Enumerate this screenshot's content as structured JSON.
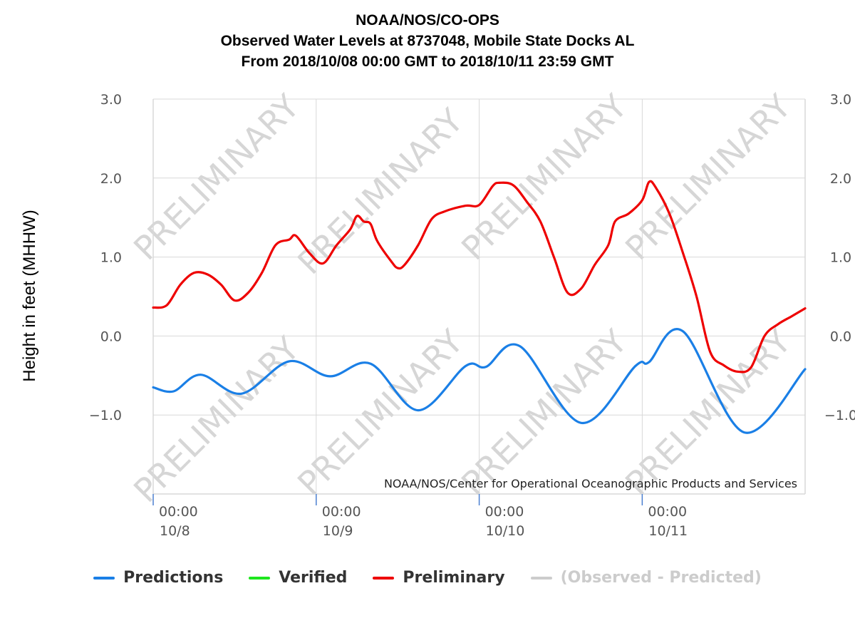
{
  "title": {
    "line1": "NOAA/NOS/CO-OPS",
    "line2": "Observed Water Levels at 8737048, Mobile State Docks AL",
    "line3": "From 2018/10/08 00:00 GMT to 2018/10/11 23:59 GMT"
  },
  "ylabel": "Height in feet (MHHW)",
  "credit": "NOAA/NOS/Center for Operational Oceanographic Products and Services",
  "watermark": "PRELIMINARY",
  "colors": {
    "predictions": "#1a7fe6",
    "verified": "#1ee61e",
    "preliminary": "#ee0000",
    "observed_minus_predicted": "#cccccc",
    "grid": "#d8d8d8"
  },
  "legend": [
    {
      "key": "predictions",
      "label": "Predictions",
      "color": "#1a7fe6",
      "muted": false
    },
    {
      "key": "verified",
      "label": "Verified",
      "color": "#1ee61e",
      "muted": false
    },
    {
      "key": "preliminary",
      "label": "Preliminary",
      "color": "#ee0000",
      "muted": false
    },
    {
      "key": "observed_minus_predicted",
      "label": "(Observed - Predicted)",
      "color": "#cccccc",
      "muted": true
    }
  ],
  "chart_data": {
    "type": "line",
    "title": "NOAA/NOS/CO-OPS Observed Water Levels at 8737048, Mobile State Docks AL",
    "ylabel": "Height in feet (MHHW)",
    "ylim": [
      -2.0,
      3.0
    ],
    "xlim": [
      "2018-10-08 00:00",
      "2018-10-11 23:59"
    ],
    "y_ticks": [
      "3.0",
      "2.0",
      "1.0",
      "0.0",
      "-1.0"
    ],
    "y_tick_values": [
      3,
      2,
      1,
      0,
      -1
    ],
    "x_ticks": [
      {
        "time": "2018-10-08 00:00",
        "line1": "00:00",
        "line2": "10/8"
      },
      {
        "time": "2018-10-09 00:00",
        "line1": "00:00",
        "line2": "10/9"
      },
      {
        "time": "2018-10-10 00:00",
        "line1": "00:00",
        "line2": "10/10"
      },
      {
        "time": "2018-10-11 00:00",
        "line1": "00:00",
        "line2": "10/11"
      }
    ],
    "grid": true,
    "legend_position": "bottom",
    "series": [
      {
        "name": "Predictions",
        "color": "#1a7fe6",
        "points": [
          [
            "2018-10-08 00:00",
            -0.65
          ],
          [
            "2018-10-08 03:00",
            -0.7
          ],
          [
            "2018-10-08 07:00",
            -0.49
          ],
          [
            "2018-10-08 13:00",
            -0.73
          ],
          [
            "2018-10-08 20:00",
            -0.32
          ],
          [
            "2018-10-09 02:00",
            -0.51
          ],
          [
            "2018-10-09 08:00",
            -0.35
          ],
          [
            "2018-10-09 15:00",
            -0.94
          ],
          [
            "2018-10-09 22:00",
            -0.38
          ],
          [
            "2018-10-10 01:00",
            -0.39
          ],
          [
            "2018-10-10 06:00",
            -0.13
          ],
          [
            "2018-10-10 15:00",
            -1.1
          ],
          [
            "2018-10-10 23:00",
            -0.38
          ],
          [
            "2018-10-11 01:00",
            -0.33
          ],
          [
            "2018-10-11 06:00",
            0.06
          ],
          [
            "2018-10-11 15:00",
            -1.22
          ],
          [
            "2018-10-11 23:59",
            -0.42
          ]
        ]
      },
      {
        "name": "Verified",
        "color": "#1ee61e",
        "points": []
      },
      {
        "name": "Preliminary",
        "color": "#ee0000",
        "points": [
          [
            "2018-10-08 00:00",
            0.36
          ],
          [
            "2018-10-08 02:00",
            0.39
          ],
          [
            "2018-10-08 04:00",
            0.65
          ],
          [
            "2018-10-08 06:00",
            0.8
          ],
          [
            "2018-10-08 08:00",
            0.78
          ],
          [
            "2018-10-08 10:00",
            0.65
          ],
          [
            "2018-10-08 12:00",
            0.45
          ],
          [
            "2018-10-08 14:00",
            0.55
          ],
          [
            "2018-10-08 16:00",
            0.8
          ],
          [
            "2018-10-08 18:00",
            1.15
          ],
          [
            "2018-10-08 20:00",
            1.22
          ],
          [
            "2018-10-08 21:00",
            1.27
          ],
          [
            "2018-10-08 23:00",
            1.05
          ],
          [
            "2018-10-09 01:00",
            0.92
          ],
          [
            "2018-10-09 03:00",
            1.15
          ],
          [
            "2018-10-09 05:00",
            1.35
          ],
          [
            "2018-10-09 06:00",
            1.52
          ],
          [
            "2018-10-09 07:00",
            1.45
          ],
          [
            "2018-10-09 08:00",
            1.42
          ],
          [
            "2018-10-09 09:00",
            1.2
          ],
          [
            "2018-10-09 11:00",
            0.95
          ],
          [
            "2018-10-09 12:00",
            0.86
          ],
          [
            "2018-10-09 13:00",
            0.9
          ],
          [
            "2018-10-09 15:00",
            1.15
          ],
          [
            "2018-10-09 17:00",
            1.48
          ],
          [
            "2018-10-09 19:00",
            1.58
          ],
          [
            "2018-10-09 22:00",
            1.65
          ],
          [
            "2018-10-10 00:00",
            1.66
          ],
          [
            "2018-10-10 02:00",
            1.9
          ],
          [
            "2018-10-10 03:00",
            1.94
          ],
          [
            "2018-10-10 05:00",
            1.91
          ],
          [
            "2018-10-10 07:00",
            1.7
          ],
          [
            "2018-10-10 09:00",
            1.45
          ],
          [
            "2018-10-10 11:00",
            1.0
          ],
          [
            "2018-10-10 13:00",
            0.55
          ],
          [
            "2018-10-10 15:00",
            0.6
          ],
          [
            "2018-10-10 17:00",
            0.9
          ],
          [
            "2018-10-10 19:00",
            1.15
          ],
          [
            "2018-10-10 20:00",
            1.45
          ],
          [
            "2018-10-10 22:00",
            1.55
          ],
          [
            "2018-10-11 00:00",
            1.72
          ],
          [
            "2018-10-11 01:00",
            1.95
          ],
          [
            "2018-10-11 02:00",
            1.88
          ],
          [
            "2018-10-11 04:00",
            1.55
          ],
          [
            "2018-10-11 06:00",
            1.05
          ],
          [
            "2018-10-11 08:00",
            0.5
          ],
          [
            "2018-10-11 10:00",
            -0.2
          ],
          [
            "2018-10-11 12:00",
            -0.37
          ],
          [
            "2018-10-11 14:00",
            -0.45
          ],
          [
            "2018-10-11 16:00",
            -0.4
          ],
          [
            "2018-10-11 18:00",
            0.0
          ],
          [
            "2018-10-11 20:00",
            0.15
          ],
          [
            "2018-10-11 22:00",
            0.25
          ],
          [
            "2018-10-11 23:59",
            0.35
          ]
        ]
      },
      {
        "name": "(Observed - Predicted)",
        "color": "#cccccc",
        "points": []
      }
    ]
  }
}
